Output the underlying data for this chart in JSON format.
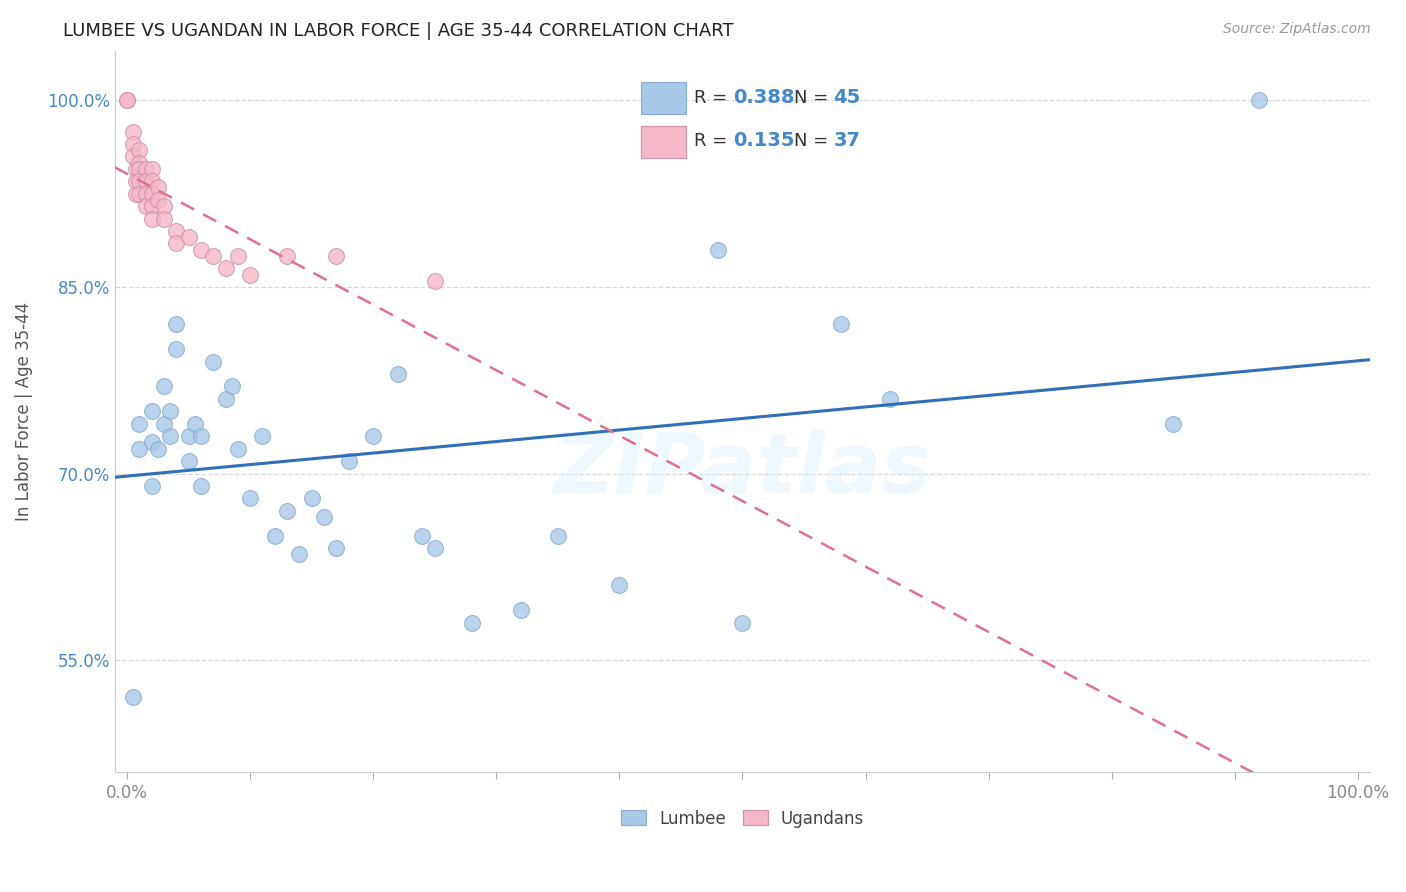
{
  "title": "LUMBEE VS UGANDAN IN LABOR FORCE | AGE 35-44 CORRELATION CHART",
  "source": "Source: ZipAtlas.com",
  "ylabel": "In Labor Force | Age 35-44",
  "xlim": [
    -0.01,
    1.01
  ],
  "ylim": [
    0.46,
    1.04
  ],
  "xticks": [
    0.0,
    0.1,
    0.2,
    0.3,
    0.4,
    0.5,
    0.6,
    0.7,
    0.8,
    0.9,
    1.0
  ],
  "xtick_labels": [
    "0.0%",
    "",
    "",
    "",
    "",
    "",
    "",
    "",
    "",
    "",
    "100.0%"
  ],
  "yticks": [
    0.55,
    0.7,
    0.85,
    1.0
  ],
  "ytick_labels": [
    "55.0%",
    "70.0%",
    "85.0%",
    "100.0%"
  ],
  "lumbee_color": "#a8c8e8",
  "ugandan_color": "#f4b8c8",
  "trend_blue": "#3070b8",
  "trend_pink": "#e07090",
  "r_lumbee": 0.388,
  "n_lumbee": 45,
  "r_ugandan": 0.135,
  "n_ugandan": 37,
  "lumbee_x": [
    0.005,
    0.01,
    0.01,
    0.02,
    0.02,
    0.02,
    0.025,
    0.03,
    0.03,
    0.035,
    0.035,
    0.04,
    0.04,
    0.05,
    0.05,
    0.055,
    0.06,
    0.06,
    0.07,
    0.08,
    0.085,
    0.09,
    0.1,
    0.11,
    0.12,
    0.13,
    0.14,
    0.15,
    0.16,
    0.17,
    0.18,
    0.2,
    0.22,
    0.24,
    0.25,
    0.28,
    0.32,
    0.35,
    0.4,
    0.48,
    0.5,
    0.58,
    0.62,
    0.85,
    0.92
  ],
  "lumbee_y": [
    0.52,
    0.72,
    0.74,
    0.69,
    0.725,
    0.75,
    0.72,
    0.74,
    0.77,
    0.73,
    0.75,
    0.8,
    0.82,
    0.71,
    0.73,
    0.74,
    0.69,
    0.73,
    0.79,
    0.76,
    0.77,
    0.72,
    0.68,
    0.73,
    0.65,
    0.67,
    0.635,
    0.68,
    0.665,
    0.64,
    0.71,
    0.73,
    0.78,
    0.65,
    0.64,
    0.58,
    0.59,
    0.65,
    0.61,
    0.88,
    0.58,
    0.82,
    0.76,
    0.74,
    1.0
  ],
  "ugandan_x": [
    0.0,
    0.0,
    0.005,
    0.005,
    0.005,
    0.007,
    0.007,
    0.007,
    0.01,
    0.01,
    0.01,
    0.01,
    0.01,
    0.015,
    0.015,
    0.015,
    0.015,
    0.02,
    0.02,
    0.02,
    0.02,
    0.02,
    0.025,
    0.025,
    0.03,
    0.03,
    0.04,
    0.04,
    0.05,
    0.06,
    0.07,
    0.08,
    0.09,
    0.1,
    0.13,
    0.17,
    0.25
  ],
  "ugandan_y": [
    1.0,
    1.0,
    0.975,
    0.965,
    0.955,
    0.945,
    0.935,
    0.925,
    0.96,
    0.95,
    0.945,
    0.935,
    0.925,
    0.945,
    0.935,
    0.925,
    0.915,
    0.945,
    0.935,
    0.925,
    0.915,
    0.905,
    0.93,
    0.92,
    0.915,
    0.905,
    0.895,
    0.885,
    0.89,
    0.88,
    0.875,
    0.865,
    0.875,
    0.86,
    0.875,
    0.875,
    0.855
  ]
}
